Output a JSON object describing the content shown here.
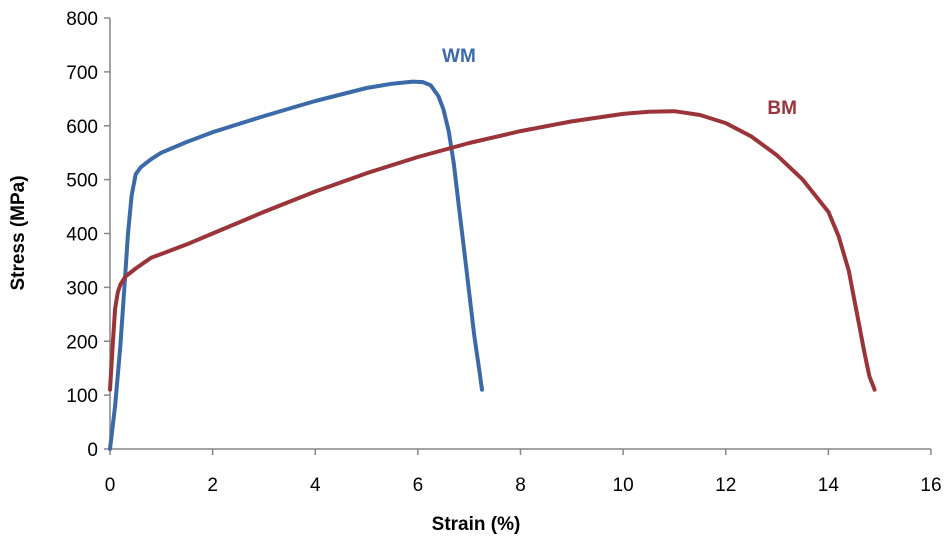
{
  "chart_data": {
    "type": "line",
    "title": "",
    "xlabel": "Strain (%)",
    "ylabel": "Stress (MPa)",
    "xlim": [
      0,
      16
    ],
    "ylim": [
      0,
      800
    ],
    "xticks": [
      0,
      2,
      4,
      6,
      8,
      10,
      12,
      14,
      16
    ],
    "yticks": [
      0,
      100,
      200,
      300,
      400,
      500,
      600,
      700,
      800
    ],
    "grid": false,
    "legend": "none",
    "series": [
      {
        "name": "WM",
        "color": "#3c6aa8",
        "x": [
          0.0,
          0.1,
          0.2,
          0.28,
          0.35,
          0.42,
          0.5,
          0.6,
          0.8,
          1.0,
          1.5,
          2.0,
          2.5,
          3.0,
          3.5,
          4.0,
          4.5,
          5.0,
          5.5,
          5.9,
          6.1,
          6.25,
          6.4,
          6.5,
          6.6,
          6.7,
          6.8,
          6.9,
          7.0,
          7.1,
          7.2,
          7.25
        ],
        "y": [
          0,
          80,
          190,
          300,
          400,
          470,
          510,
          523,
          538,
          550,
          570,
          588,
          603,
          618,
          632,
          646,
          658,
          670,
          678,
          682,
          681,
          675,
          655,
          630,
          590,
          530,
          450,
          370,
          290,
          210,
          145,
          110
        ]
      },
      {
        "name": "BM",
        "color": "#9b3438",
        "x": [
          0.0,
          0.05,
          0.1,
          0.15,
          0.2,
          0.3,
          0.5,
          0.8,
          1.0,
          1.5,
          2.0,
          3.0,
          4.0,
          5.0,
          6.0,
          7.0,
          8.0,
          9.0,
          10.0,
          10.5,
          11.0,
          11.5,
          12.0,
          12.5,
          13.0,
          13.5,
          14.0,
          14.2,
          14.4,
          14.5,
          14.6,
          14.7,
          14.8,
          14.9
        ],
        "y": [
          110,
          190,
          260,
          290,
          305,
          320,
          335,
          355,
          362,
          380,
          400,
          440,
          478,
          512,
          542,
          568,
          590,
          608,
          622,
          626,
          627,
          620,
          605,
          580,
          545,
          500,
          440,
          395,
          330,
          280,
          230,
          180,
          135,
          110
        ]
      }
    ],
    "annotations": [
      {
        "text": "WM",
        "x": 6.8,
        "y": 718
      },
      {
        "text": "BM",
        "x": 13.1,
        "y": 622
      }
    ]
  }
}
